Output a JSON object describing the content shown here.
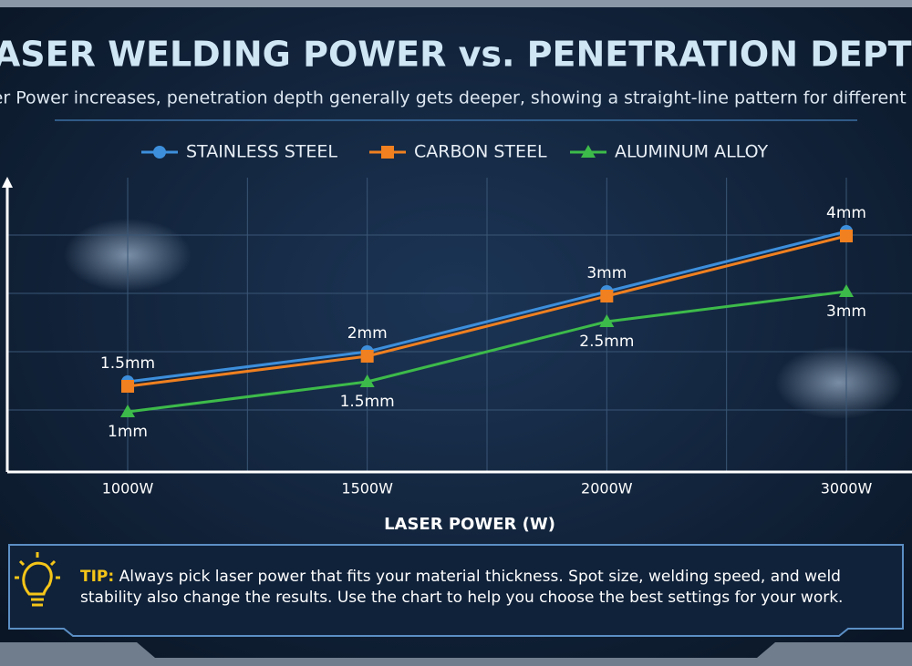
{
  "chart_data": {
    "type": "line",
    "title": "LASER WELDING POWER vs. PENETRATION DEPTH",
    "subtitle": "ser Power increases, penetration depth generally gets deeper, showing a straight-line pattern for different m",
    "x_label": "LASER POWER (W)",
    "categories": [
      "1000W",
      "1500W",
      "2000W",
      "3000W"
    ],
    "ylim": [
      0,
      5
    ],
    "grid": true,
    "series": [
      {
        "name": "STAINLESS STEEL",
        "color": "#3d8fdc",
        "marker": "circle",
        "values": [
          1.5,
          2,
          3,
          4
        ],
        "value_labels": [
          "1.5mm",
          "2mm",
          "3mm",
          "4mm"
        ],
        "label_position": "above"
      },
      {
        "name": "CARBON STEEL",
        "color": "#f08020",
        "marker": "square",
        "values": [
          1.5,
          2,
          3,
          4
        ]
      },
      {
        "name": "ALUMINUM ALLOY",
        "color": "#3dbb4a",
        "marker": "triangle",
        "values": [
          1,
          1.5,
          2.5,
          3
        ],
        "value_labels": [
          "1mm",
          "1.5mm",
          "2.5mm",
          "3mm"
        ],
        "label_position": "below"
      }
    ]
  },
  "tip": {
    "label": "TIP:",
    "lines": [
      "Always pick laser power that fits your material thickness. Spot size, welding speed, and weld",
      "stability also change the results. Use the chart to help you choose the best settings for your work."
    ]
  }
}
